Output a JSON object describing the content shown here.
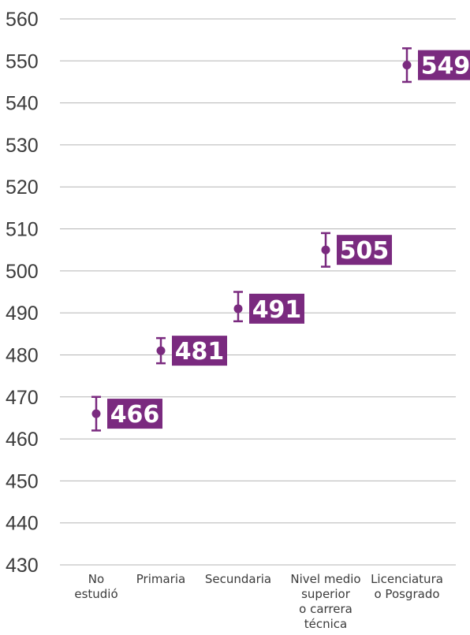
{
  "chart_data": {
    "type": "scatter",
    "title": "",
    "xlabel": "",
    "ylabel": "",
    "ylim": [
      430,
      560
    ],
    "yticks": [
      430,
      440,
      450,
      460,
      470,
      480,
      490,
      500,
      510,
      520,
      530,
      540,
      550,
      560
    ],
    "grid": true,
    "categories": [
      [
        "No",
        "estudió"
      ],
      [
        "Primaria"
      ],
      [
        "Secundaria"
      ],
      [
        "Nivel medio",
        "superior",
        "o carrera",
        "técnica"
      ],
      [
        "Licenciatura",
        "o Posgrado"
      ]
    ],
    "values": [
      466,
      481,
      491,
      505,
      549
    ],
    "error_low": [
      462,
      478,
      488,
      501,
      545
    ],
    "error_high": [
      470,
      484,
      495,
      509,
      553
    ],
    "data_labels": [
      "466",
      "481",
      "491",
      "505",
      "549"
    ],
    "colors": {
      "accent": "#7a2a7f",
      "grid": "#b5b5b5",
      "text": "#3b3b3b"
    }
  }
}
